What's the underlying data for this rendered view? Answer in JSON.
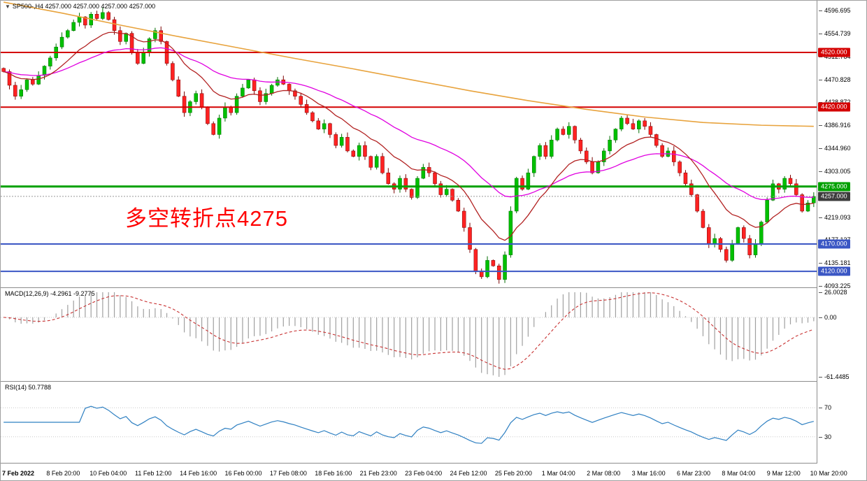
{
  "legend": {
    "text": "SP500-,H4 4257.000 4257.000 4257.000 4257.000"
  },
  "annotation": {
    "text": "多空转折点4275",
    "color": "#FF0000"
  },
  "colors": {
    "bull": "#00C000",
    "bull_stroke": "#006E00",
    "bear": "#FF2222",
    "bear_stroke": "#7A0000",
    "macd_hist": "#A0A0A0",
    "macd_signal": "#C83232",
    "rsi_line": "#2F80C2",
    "grid": "#C8C8C8",
    "current_line": "#999999"
  },
  "chart_data": {
    "type": "candlestick",
    "symbol": "SP500-",
    "timeframe": "H4",
    "title": "SP500-,H4",
    "note": "close path traced from chart; opens equal previous close",
    "closes": [
      4485,
      4460,
      4440,
      4452,
      4470,
      4462,
      4478,
      4495,
      4510,
      4530,
      4548,
      4560,
      4575,
      4585,
      4570,
      4590,
      4582,
      4593,
      4580,
      4560,
      4540,
      4555,
      4520,
      4500,
      4520,
      4545,
      4560,
      4540,
      4500,
      4470,
      4440,
      4410,
      4430,
      4445,
      4420,
      4390,
      4370,
      4400,
      4420,
      4410,
      4440,
      4455,
      4470,
      4450,
      4430,
      4445,
      4460,
      4470,
      4462,
      4450,
      4440,
      4425,
      4410,
      4395,
      4380,
      4390,
      4370,
      4350,
      4365,
      4340,
      4330,
      4350,
      4330,
      4310,
      4330,
      4300,
      4280,
      4270,
      4290,
      4270,
      4255,
      4290,
      4310,
      4300,
      4280,
      4260,
      4270,
      4250,
      4230,
      4200,
      4160,
      4120,
      4110,
      4140,
      4130,
      4105,
      4150,
      4230,
      4290,
      4270,
      4300,
      4330,
      4350,
      4330,
      4360,
      4380,
      4370,
      4385,
      4360,
      4340,
      4320,
      4300,
      4320,
      4340,
      4360,
      4380,
      4400,
      4390,
      4380,
      4395,
      4385,
      4370,
      4350,
      4330,
      4340,
      4320,
      4300,
      4280,
      4260,
      4230,
      4200,
      4170,
      4180,
      4160,
      4140,
      4170,
      4200,
      4180,
      4150,
      4170,
      4210,
      4250,
      4280,
      4270,
      4290,
      4280,
      4260,
      4230,
      4245,
      4257
    ],
    "price_scale": {
      "top": 4614.6,
      "bottom": 4090.7
    },
    "axis_ticks": [
      "4596.695",
      "4554.739",
      "4512.784",
      "4470.828",
      "4428.872",
      "4386.916",
      "4344.960",
      "4303.005",
      "4261.049",
      "4219.093",
      "4177.137",
      "4135.181",
      "4093.225"
    ],
    "levels": [
      {
        "value": 4520.0,
        "label": "4520.000",
        "color": "#D40000",
        "width": 2
      },
      {
        "value": 4420.0,
        "label": "4420.000",
        "color": "#D40000",
        "width": 2
      },
      {
        "value": 4275.0,
        "label": "4275.000",
        "color": "#00A000",
        "width": 3
      },
      {
        "value": 4170.0,
        "label": "4170.000",
        "color": "#3A56C4",
        "width": 2
      },
      {
        "value": 4120.0,
        "label": "4120.000",
        "color": "#3A56C4",
        "width": 2
      }
    ],
    "current_price": {
      "value": 4257.0,
      "label": "4257.000",
      "badge_color": "#3C3C3C"
    },
    "moving_averages": [
      {
        "name": "ma-fast-darkred",
        "color": "#B22222",
        "period": 13
      },
      {
        "name": "ma-medium-magenta",
        "color": "#E000E0",
        "period": 34
      },
      {
        "name": "ma-slow-orange",
        "color": "#E8A33D",
        "keypoints": [
          [
            0,
            4612
          ],
          [
            10,
            4592
          ],
          [
            20,
            4570
          ],
          [
            30,
            4549
          ],
          [
            40,
            4529
          ],
          [
            50,
            4509
          ],
          [
            60,
            4490
          ],
          [
            70,
            4470
          ],
          [
            80,
            4450
          ],
          [
            90,
            4432
          ],
          [
            100,
            4416
          ],
          [
            110,
            4402
          ],
          [
            120,
            4392
          ],
          [
            130,
            4387
          ],
          [
            139,
            4385
          ]
        ]
      }
    ],
    "indicators": {
      "macd": {
        "legend": "MACD(12,26,9) -4.2961 -9.2775",
        "fast": 12,
        "slow": 26,
        "signal_period": 9,
        "current_macd": -4.2961,
        "current_signal": -9.2775,
        "scale_max": 26.0028,
        "scale_min": -61.4485,
        "axis_labels": [
          "26.0028",
          "0.00",
          "-61.4485"
        ]
      },
      "rsi": {
        "legend": "RSI(14) 50.7788",
        "period": 14,
        "current": 50.7788,
        "levels": [
          70,
          30
        ],
        "scale": [
          0,
          100
        ],
        "axis_labels": [
          "70",
          "30"
        ]
      }
    },
    "time_labels": [
      "7 Feb 2022",
      "8 Feb 20:00",
      "10 Feb 04:00",
      "11 Feb 12:00",
      "14 Feb 16:00",
      "16 Feb 00:00",
      "17 Feb 08:00",
      "18 Feb 16:00",
      "21 Feb 23:00",
      "23 Feb 04:00",
      "24 Feb 12:00",
      "25 Feb 20:00",
      "1 Mar 04:00",
      "2 Mar 08:00",
      "3 Mar 16:00",
      "6 Mar 23:00",
      "8 Mar 04:00",
      "9 Mar 12:00",
      "10 Mar 20:00"
    ]
  }
}
